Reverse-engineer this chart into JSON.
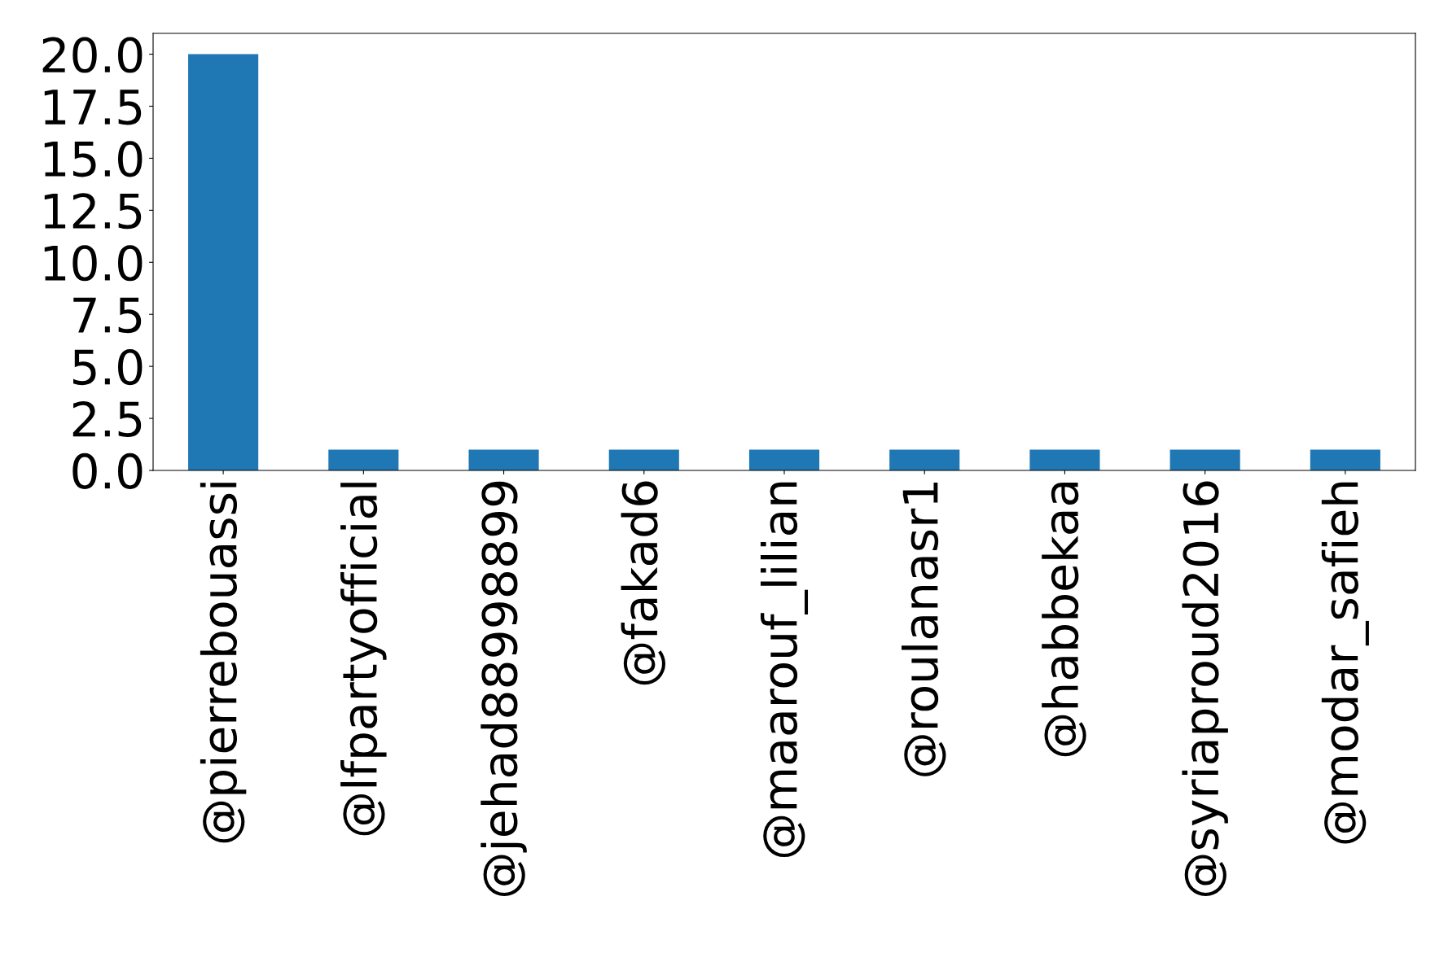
{
  "chart_data": {
    "type": "bar",
    "categories": [
      "@pierrebouassi",
      "@lfpartyofficial",
      "@jehad88998899",
      "@fakad6",
      "@maarouf_lilian",
      "@roulanasr1",
      "@habbekaa",
      "@syriaproud2016",
      "@modar_safieh"
    ],
    "values": [
      20,
      1,
      1,
      1,
      1,
      1,
      1,
      1,
      1
    ],
    "color": "#1f77b4",
    "ylim": [
      0,
      21
    ],
    "yticks": [
      {
        "value": 0,
        "label": "0.0"
      },
      {
        "value": 2.5,
        "label": "2.5"
      },
      {
        "value": 5,
        "label": "5.0"
      },
      {
        "value": 7.5,
        "label": "7.5"
      },
      {
        "value": 10,
        "label": "10.0"
      },
      {
        "value": 12.5,
        "label": "12.5"
      },
      {
        "value": 15,
        "label": "15.0"
      },
      {
        "value": 17.5,
        "label": "17.5"
      },
      {
        "value": 20,
        "label": "20.0"
      }
    ],
    "grid": false,
    "legend": false
  }
}
